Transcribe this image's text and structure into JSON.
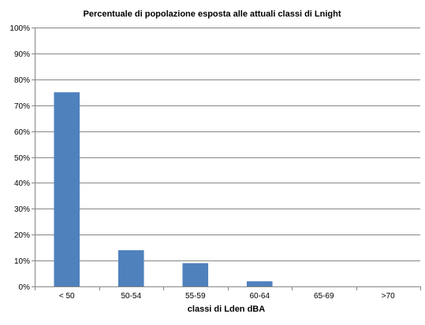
{
  "chart_data": {
    "type": "bar",
    "title": "Percentuale di popolazione esposta alle attuali classi di Lnight",
    "xlabel": "classi di Lden dBA",
    "ylabel": "",
    "categories": [
      "< 50",
      "50-54",
      "55-59",
      "60-64",
      "65-69",
      ">70"
    ],
    "values": [
      75,
      14,
      9,
      2,
      0,
      0
    ],
    "ylim": [
      0,
      100
    ],
    "ytick_step": 10,
    "ytick_suffix": "%",
    "grid": true,
    "legend": "none",
    "colors": {
      "bar": "#4f81bd",
      "grid": "#868686",
      "axis": "#868686"
    }
  }
}
